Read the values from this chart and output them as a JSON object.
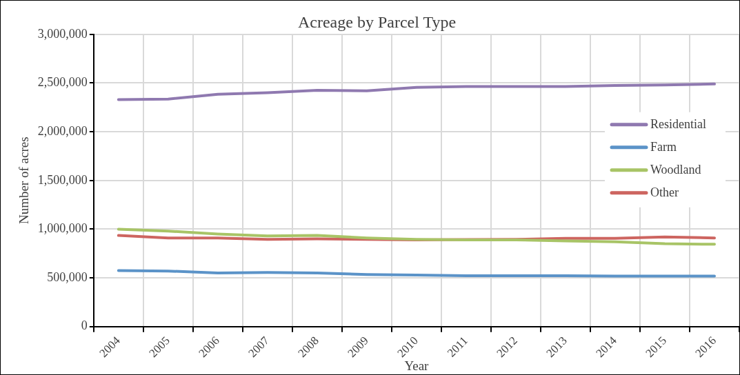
{
  "chart_data": {
    "type": "line",
    "title": "Acreage by Parcel Type",
    "xlabel": "Year",
    "ylabel": "Number of acres",
    "categories": [
      "2004",
      "2005",
      "2006",
      "2007",
      "2008",
      "2009",
      "2010",
      "2011",
      "2012",
      "2013",
      "2014",
      "2015",
      "2016"
    ],
    "series": [
      {
        "name": "Residential",
        "color": "#8f79b0",
        "values": [
          2330000,
          2335000,
          2385000,
          2400000,
          2425000,
          2420000,
          2455000,
          2465000,
          2465000,
          2465000,
          2475000,
          2480000,
          2490000
        ]
      },
      {
        "name": "Farm",
        "color": "#5b93c8",
        "values": [
          575000,
          570000,
          550000,
          555000,
          550000,
          535000,
          528000,
          522000,
          522000,
          522000,
          518000,
          518000,
          518000
        ]
      },
      {
        "name": "Woodland",
        "color": "#a8c466",
        "values": [
          1000000,
          980000,
          950000,
          930000,
          935000,
          910000,
          895000,
          890000,
          890000,
          880000,
          870000,
          850000,
          845000
        ]
      },
      {
        "name": "Other",
        "color": "#cd6560",
        "values": [
          935000,
          910000,
          910000,
          895000,
          900000,
          895000,
          890000,
          893000,
          895000,
          905000,
          905000,
          920000,
          910000
        ]
      }
    ],
    "ylim": [
      0,
      3000000
    ],
    "yticks": [
      0,
      {
        "value": 500000,
        "label": "500,000"
      },
      {
        "value": 1000000,
        "label": "1,000,000"
      },
      {
        "value": 1500000,
        "label": "1,500,000"
      },
      {
        "value": 2000000,
        "label": "2,000,000"
      },
      {
        "value": 2500000,
        "label": "2,500,000"
      },
      {
        "value": 3000000,
        "label": "3,000,000"
      }
    ],
    "grid": true,
    "legend": "right",
    "marker": "none",
    "line_style": "solid"
  }
}
